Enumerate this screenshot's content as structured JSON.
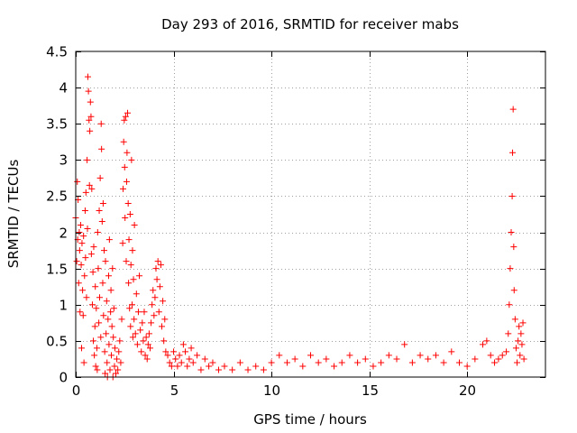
{
  "chart_data": {
    "type": "scatter",
    "title": "Day 293 of 2016, SRMTID for receiver mabs",
    "xlabel": "GPS time / hours",
    "ylabel": "SRMTID / TECUs",
    "xlim": [
      0,
      24
    ],
    "ylim": [
      0,
      4.5
    ],
    "x_ticks": [
      0,
      5,
      10,
      15,
      20
    ],
    "x_tick_labels": [
      "0",
      "5",
      "10",
      "15",
      "20"
    ],
    "y_ticks": [
      0,
      0.5,
      1,
      1.5,
      2,
      2.5,
      3,
      3.5,
      4,
      4.5
    ],
    "y_tick_labels": [
      "0",
      "0.5",
      "1",
      "1.5",
      "2",
      "2.5",
      "3",
      "3.5",
      "4",
      "4.5"
    ],
    "grid": true,
    "marker": "+",
    "color": "#ff0000",
    "series": [
      {
        "name": "SRMTID",
        "points": [
          [
            0.0,
            2.2
          ],
          [
            0.05,
            1.6
          ],
          [
            0.08,
            2.7
          ],
          [
            0.1,
            1.9
          ],
          [
            0.12,
            2.45
          ],
          [
            0.15,
            1.3
          ],
          [
            0.18,
            2.0
          ],
          [
            0.2,
            1.75
          ],
          [
            0.22,
            0.9
          ],
          [
            0.25,
            2.1
          ],
          [
            0.28,
            1.55
          ],
          [
            0.3,
            0.4
          ],
          [
            0.32,
            1.85
          ],
          [
            0.35,
            1.2
          ],
          [
            0.38,
            0.85
          ],
          [
            0.4,
            1.95
          ],
          [
            0.42,
            0.2
          ],
          [
            0.45,
            1.4
          ],
          [
            0.48,
            2.3
          ],
          [
            0.5,
            1.65
          ],
          [
            0.52,
            2.55
          ],
          [
            0.55,
            1.1
          ],
          [
            0.58,
            3.0
          ],
          [
            0.6,
            2.05
          ],
          [
            0.62,
            4.15
          ],
          [
            0.65,
            3.95
          ],
          [
            0.68,
            3.55
          ],
          [
            0.7,
            2.65
          ],
          [
            0.72,
            3.4
          ],
          [
            0.75,
            3.8
          ],
          [
            0.78,
            3.6
          ],
          [
            0.8,
            1.7
          ],
          [
            0.82,
            2.6
          ],
          [
            0.85,
            1.0
          ],
          [
            0.88,
            1.45
          ],
          [
            0.9,
            0.5
          ],
          [
            0.92,
            1.8
          ],
          [
            0.95,
            0.3
          ],
          [
            0.98,
            0.7
          ],
          [
            1.0,
            1.25
          ],
          [
            1.02,
            0.15
          ],
          [
            1.05,
            0.95
          ],
          [
            1.08,
            0.4
          ],
          [
            1.1,
            0.1
          ],
          [
            1.12,
            2.0
          ],
          [
            1.15,
            1.5
          ],
          [
            1.18,
            0.75
          ],
          [
            1.2,
            2.3
          ],
          [
            1.22,
            1.1
          ],
          [
            1.25,
            2.75
          ],
          [
            1.28,
            0.55
          ],
          [
            1.3,
            3.5
          ],
          [
            1.32,
            3.15
          ],
          [
            1.35,
            2.15
          ],
          [
            1.38,
            1.3
          ],
          [
            1.4,
            2.4
          ],
          [
            1.42,
            0.85
          ],
          [
            1.45,
            1.75
          ],
          [
            1.48,
            0.35
          ],
          [
            1.5,
            0.05
          ],
          [
            1.52,
            1.6
          ],
          [
            1.55,
            0.6
          ],
          [
            1.58,
            1.05
          ],
          [
            1.6,
            0.2
          ],
          [
            1.62,
            0.0
          ],
          [
            1.65,
            0.8
          ],
          [
            1.68,
            1.4
          ],
          [
            1.7,
            0.45
          ],
          [
            1.72,
            1.9
          ],
          [
            1.75,
            0.1
          ],
          [
            1.78,
            0.9
          ],
          [
            1.8,
            1.2
          ],
          [
            1.82,
            0.3
          ],
          [
            1.85,
            0.7
          ],
          [
            1.88,
            1.5
          ],
          [
            1.9,
            0.0
          ],
          [
            1.92,
            0.55
          ],
          [
            1.95,
            0.95
          ],
          [
            1.98,
            0.15
          ],
          [
            2.0,
            0.4
          ],
          [
            2.05,
            0.05
          ],
          [
            2.1,
            0.25
          ],
          [
            2.15,
            0.1
          ],
          [
            2.2,
            0.35
          ],
          [
            2.25,
            0.5
          ],
          [
            2.3,
            0.2
          ],
          [
            2.35,
            0.8
          ],
          [
            2.4,
            1.85
          ],
          [
            2.42,
            2.6
          ],
          [
            2.45,
            3.25
          ],
          [
            2.48,
            3.55
          ],
          [
            2.5,
            2.9
          ],
          [
            2.52,
            2.2
          ],
          [
            2.55,
            3.6
          ],
          [
            2.58,
            1.6
          ],
          [
            2.6,
            2.7
          ],
          [
            2.62,
            3.1
          ],
          [
            2.65,
            3.65
          ],
          [
            2.68,
            2.4
          ],
          [
            2.7,
            1.3
          ],
          [
            2.72,
            1.9
          ],
          [
            2.75,
            0.95
          ],
          [
            2.78,
            2.25
          ],
          [
            2.8,
            0.7
          ],
          [
            2.82,
            1.55
          ],
          [
            2.85,
            3.0
          ],
          [
            2.88,
            1.0
          ],
          [
            2.9,
            1.75
          ],
          [
            2.92,
            0.55
          ],
          [
            2.95,
            1.35
          ],
          [
            2.98,
            0.8
          ],
          [
            3.0,
            2.1
          ],
          [
            3.05,
            0.6
          ],
          [
            3.1,
            1.15
          ],
          [
            3.15,
            0.45
          ],
          [
            3.2,
            0.9
          ],
          [
            3.25,
            1.4
          ],
          [
            3.3,
            0.65
          ],
          [
            3.35,
            0.35
          ],
          [
            3.4,
            0.75
          ],
          [
            3.45,
            0.5
          ],
          [
            3.5,
            0.9
          ],
          [
            3.55,
            0.3
          ],
          [
            3.6,
            0.55
          ],
          [
            3.65,
            0.25
          ],
          [
            3.7,
            0.45
          ],
          [
            3.75,
            0.6
          ],
          [
            3.8,
            0.4
          ],
          [
            3.85,
            0.75
          ],
          [
            3.9,
            1.0
          ],
          [
            3.95,
            1.2
          ],
          [
            4.0,
            0.85
          ],
          [
            4.05,
            1.1
          ],
          [
            4.1,
            1.5
          ],
          [
            4.15,
            1.35
          ],
          [
            4.2,
            1.6
          ],
          [
            4.25,
            0.9
          ],
          [
            4.3,
            1.25
          ],
          [
            4.35,
            1.55
          ],
          [
            4.4,
            0.7
          ],
          [
            4.45,
            1.05
          ],
          [
            4.5,
            0.5
          ],
          [
            4.55,
            0.8
          ],
          [
            4.6,
            0.35
          ],
          [
            4.7,
            0.3
          ],
          [
            4.8,
            0.2
          ],
          [
            4.9,
            0.15
          ],
          [
            5.0,
            0.35
          ],
          [
            5.1,
            0.25
          ],
          [
            5.2,
            0.15
          ],
          [
            5.3,
            0.3
          ],
          [
            5.4,
            0.2
          ],
          [
            5.5,
            0.45
          ],
          [
            5.6,
            0.35
          ],
          [
            5.7,
            0.15
          ],
          [
            5.8,
            0.25
          ],
          [
            5.9,
            0.4
          ],
          [
            6.0,
            0.2
          ],
          [
            6.2,
            0.3
          ],
          [
            6.4,
            0.1
          ],
          [
            6.6,
            0.25
          ],
          [
            6.8,
            0.15
          ],
          [
            7.0,
            0.2
          ],
          [
            7.3,
            0.1
          ],
          [
            7.6,
            0.15
          ],
          [
            8.0,
            0.1
          ],
          [
            8.4,
            0.2
          ],
          [
            8.8,
            0.1
          ],
          [
            9.2,
            0.15
          ],
          [
            9.6,
            0.1
          ],
          [
            10.0,
            0.2
          ],
          [
            10.4,
            0.3
          ],
          [
            10.8,
            0.2
          ],
          [
            11.2,
            0.25
          ],
          [
            11.6,
            0.15
          ],
          [
            12.0,
            0.3
          ],
          [
            12.4,
            0.2
          ],
          [
            12.8,
            0.25
          ],
          [
            13.2,
            0.15
          ],
          [
            13.6,
            0.2
          ],
          [
            14.0,
            0.3
          ],
          [
            14.4,
            0.2
          ],
          [
            14.8,
            0.25
          ],
          [
            15.2,
            0.15
          ],
          [
            15.6,
            0.2
          ],
          [
            16.0,
            0.3
          ],
          [
            16.4,
            0.25
          ],
          [
            16.8,
            0.45
          ],
          [
            17.2,
            0.2
          ],
          [
            17.6,
            0.3
          ],
          [
            18.0,
            0.25
          ],
          [
            18.4,
            0.3
          ],
          [
            18.8,
            0.2
          ],
          [
            19.2,
            0.35
          ],
          [
            19.6,
            0.2
          ],
          [
            20.0,
            0.15
          ],
          [
            20.4,
            0.25
          ],
          [
            20.8,
            0.45
          ],
          [
            21.0,
            0.5
          ],
          [
            21.2,
            0.3
          ],
          [
            21.4,
            0.2
          ],
          [
            21.6,
            0.25
          ],
          [
            21.8,
            0.3
          ],
          [
            22.0,
            0.35
          ],
          [
            22.1,
            0.6
          ],
          [
            22.15,
            1.0
          ],
          [
            22.2,
            1.5
          ],
          [
            22.25,
            2.0
          ],
          [
            22.3,
            2.5
          ],
          [
            22.32,
            3.1
          ],
          [
            22.35,
            3.7
          ],
          [
            22.38,
            1.8
          ],
          [
            22.4,
            1.2
          ],
          [
            22.45,
            0.8
          ],
          [
            22.5,
            0.4
          ],
          [
            22.55,
            0.2
          ],
          [
            22.6,
            0.5
          ],
          [
            22.65,
            0.7
          ],
          [
            22.7,
            0.3
          ],
          [
            22.75,
            0.6
          ],
          [
            22.8,
            0.45
          ],
          [
            22.85,
            0.75
          ],
          [
            22.9,
            0.25
          ]
        ]
      }
    ]
  }
}
